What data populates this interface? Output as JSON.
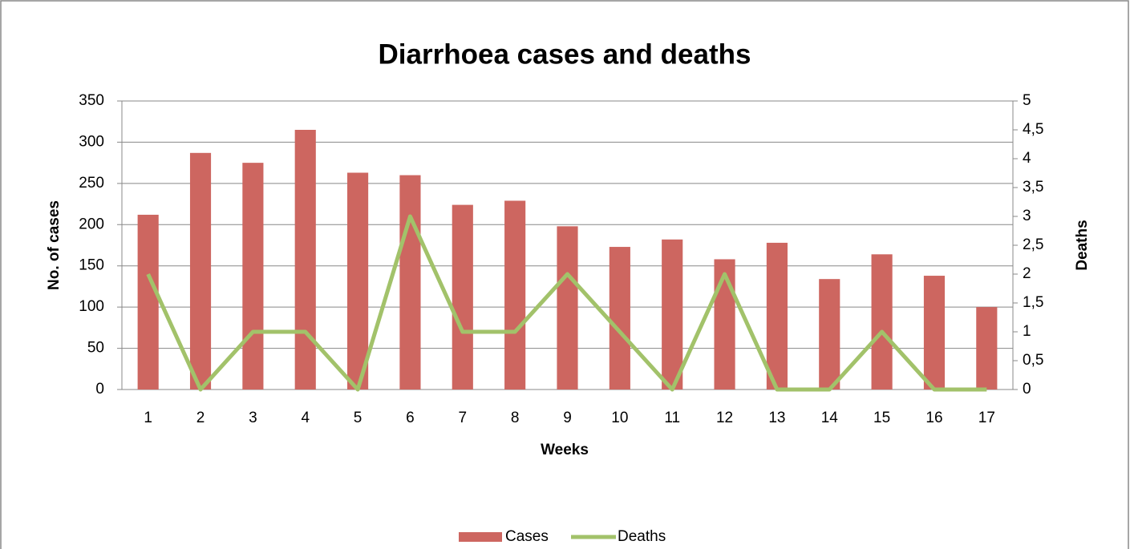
{
  "chart_data": {
    "type": "bar",
    "title": "Diarrhoea cases and deaths",
    "x_label": "Weeks",
    "y_label": "No. of cases",
    "y2_label": "Deaths",
    "categories": [
      "1",
      "2",
      "3",
      "4",
      "5",
      "6",
      "7",
      "8",
      "9",
      "10",
      "11",
      "12",
      "13",
      "14",
      "15",
      "16",
      "17"
    ],
    "series": [
      {
        "name": "Cases",
        "type": "bar",
        "color": "#cd6660",
        "values": [
          212,
          287,
          275,
          315,
          263,
          260,
          224,
          229,
          198,
          173,
          182,
          158,
          178,
          134,
          164,
          138,
          100
        ]
      },
      {
        "name": "Deaths",
        "type": "line",
        "axis": "y2",
        "color": "#a2c26a",
        "values": [
          2,
          0,
          1,
          1,
          0,
          3,
          1,
          1,
          2,
          1,
          0,
          2,
          0,
          0,
          1,
          0,
          0
        ]
      }
    ],
    "ylim": [
      0,
      350
    ],
    "yticks": [
      0,
      50,
      100,
      150,
      200,
      250,
      300,
      350
    ],
    "y2lim": [
      0,
      5
    ],
    "y2ticks": [
      0,
      {
        "value": 0.5,
        "label": "0,5"
      },
      1,
      {
        "value": 1.5,
        "label": "1,5"
      },
      2,
      {
        "value": 2.5,
        "label": "2,5"
      },
      3,
      {
        "value": 3.5,
        "label": "3,5"
      },
      4,
      {
        "value": 4.5,
        "label": "4,5"
      },
      5
    ],
    "grid": true,
    "legend": "bottom"
  }
}
